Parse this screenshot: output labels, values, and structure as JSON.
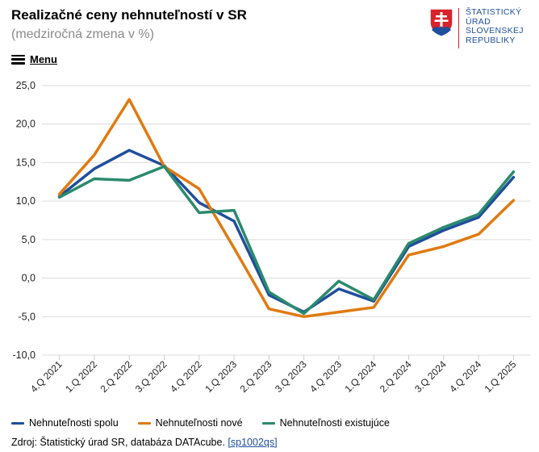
{
  "header": {
    "title": "Realizačné ceny nehnuteľností v SR",
    "subtitle": "(medziročná zmena v %)"
  },
  "menu": {
    "label": "Menu",
    "icon": "hamburger-icon"
  },
  "logo": {
    "lines": [
      "ŠTATISTICKÝ",
      "ÚRAD",
      "SLOVENSKEJ",
      "REPUBLIKY"
    ],
    "colors": {
      "red": "#d8232a",
      "blue": "#1f4e9c"
    }
  },
  "chart_data": {
    "type": "line",
    "categories": [
      "4.Q 2021",
      "1.Q 2022",
      "2.Q 2022",
      "3.Q 2022",
      "4.Q 2022",
      "1.Q 2023",
      "2.Q 2023",
      "3.Q 2023",
      "4.Q 2023",
      "1.Q 2024",
      "2.Q 2024",
      "3.Q 2024",
      "4.Q 2024",
      "1.Q 2025"
    ],
    "y_ticks": [
      "25,0",
      "20,0",
      "15,0",
      "10,0",
      "5,0",
      "0,0",
      "-5,0",
      "-10,0"
    ],
    "ylim": [
      -10,
      25
    ],
    "grid": true,
    "legend_position": "bottom",
    "series": [
      {
        "name": "Nehnuteľnosti spolu",
        "color": "#1f4e9c",
        "values": [
          10.6,
          14.2,
          16.6,
          14.6,
          9.8,
          7.4,
          -2.2,
          -4.4,
          -1.4,
          -3.0,
          4.1,
          6.2,
          7.9,
          13.1
        ]
      },
      {
        "name": "Nehnuteľnosti nové",
        "color": "#e07a10",
        "values": [
          10.9,
          16.0,
          23.2,
          14.5,
          11.6,
          3.9,
          -4.0,
          -5.0,
          -4.4,
          -3.8,
          3.0,
          4.1,
          5.7,
          10.1
        ]
      },
      {
        "name": "Nehnuteľnosti existujúce",
        "color": "#2a8a6c",
        "values": [
          10.5,
          12.9,
          12.7,
          14.5,
          8.5,
          8.8,
          -1.8,
          -4.6,
          -0.4,
          -2.8,
          4.5,
          6.6,
          8.3,
          13.8
        ]
      }
    ]
  },
  "source": {
    "text": "Zdroj: Štatistický úrad SR, databáza DATAcube.",
    "link": "[sp1002qs]"
  }
}
